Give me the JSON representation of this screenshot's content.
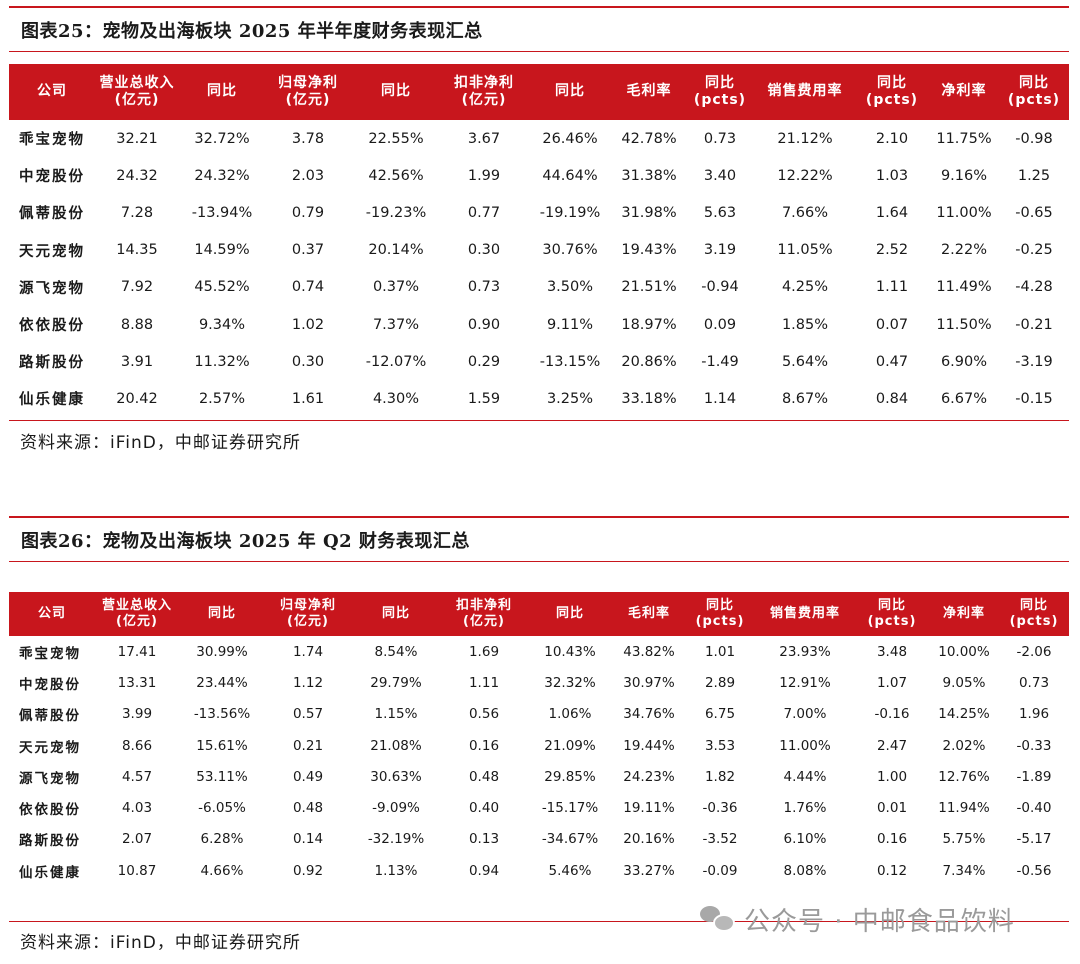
{
  "headers": [
    "公司",
    "营业总收入\n(亿元)",
    "同比",
    "归母净利\n(亿元)",
    "同比",
    "扣非净利\n(亿元)",
    "同比",
    "毛利率",
    "同比\n(pcts)",
    "销售费用率",
    "同比\n(pcts)",
    "净利率",
    "同比\n(pcts)"
  ],
  "table1": {
    "title": "图表25：宠物及出海板块 2025 年半年度财务表现汇总",
    "rows": [
      [
        "乖宝宠物",
        "32.21",
        "32.72%",
        "3.78",
        "22.55%",
        "3.67",
        "26.46%",
        "42.78%",
        "0.73",
        "21.12%",
        "2.10",
        "11.75%",
        "-0.98"
      ],
      [
        "中宠股份",
        "24.32",
        "24.32%",
        "2.03",
        "42.56%",
        "1.99",
        "44.64%",
        "31.38%",
        "3.40",
        "12.22%",
        "1.03",
        "9.16%",
        "1.25"
      ],
      [
        "佩蒂股份",
        "7.28",
        "-13.94%",
        "0.79",
        "-19.23%",
        "0.77",
        "-19.19%",
        "31.98%",
        "5.63",
        "7.66%",
        "1.64",
        "11.00%",
        "-0.65"
      ],
      [
        "天元宠物",
        "14.35",
        "14.59%",
        "0.37",
        "20.14%",
        "0.30",
        "30.76%",
        "19.43%",
        "3.19",
        "11.05%",
        "2.52",
        "2.22%",
        "-0.25"
      ],
      [
        "源飞宠物",
        "7.92",
        "45.52%",
        "0.74",
        "0.37%",
        "0.73",
        "3.50%",
        "21.51%",
        "-0.94",
        "4.25%",
        "1.11",
        "11.49%",
        "-4.28"
      ],
      [
        "依依股份",
        "8.88",
        "9.34%",
        "1.02",
        "7.37%",
        "0.90",
        "9.11%",
        "18.97%",
        "0.09",
        "1.85%",
        "0.07",
        "11.50%",
        "-0.21"
      ],
      [
        "路斯股份",
        "3.91",
        "11.32%",
        "0.30",
        "-12.07%",
        "0.29",
        "-13.15%",
        "20.86%",
        "-1.49",
        "5.64%",
        "0.47",
        "6.90%",
        "-3.19"
      ],
      [
        "仙乐健康",
        "20.42",
        "2.57%",
        "1.61",
        "4.30%",
        "1.59",
        "3.25%",
        "33.18%",
        "1.14",
        "8.67%",
        "0.84",
        "6.67%",
        "-0.15"
      ]
    ],
    "source": "资料来源：iFinD，中邮证券研究所"
  },
  "table2": {
    "title": "图表26：宠物及出海板块 2025 年 Q2 财务表现汇总",
    "rows": [
      [
        "乖宝宠物",
        "17.41",
        "30.99%",
        "1.74",
        "8.54%",
        "1.69",
        "10.43%",
        "43.82%",
        "1.01",
        "23.93%",
        "3.48",
        "10.00%",
        "-2.06"
      ],
      [
        "中宠股份",
        "13.31",
        "23.44%",
        "1.12",
        "29.79%",
        "1.11",
        "32.32%",
        "30.97%",
        "2.89",
        "12.91%",
        "1.07",
        "9.05%",
        "0.73"
      ],
      [
        "佩蒂股份",
        "3.99",
        "-13.56%",
        "0.57",
        "1.15%",
        "0.56",
        "1.06%",
        "34.76%",
        "6.75",
        "7.00%",
        "-0.16",
        "14.25%",
        "1.96"
      ],
      [
        "天元宠物",
        "8.66",
        "15.61%",
        "0.21",
        "21.08%",
        "0.16",
        "21.09%",
        "19.44%",
        "3.53",
        "11.00%",
        "2.47",
        "2.02%",
        "-0.33"
      ],
      [
        "源飞宠物",
        "4.57",
        "53.11%",
        "0.49",
        "30.63%",
        "0.48",
        "29.85%",
        "24.23%",
        "1.82",
        "4.44%",
        "1.00",
        "12.76%",
        "-1.89"
      ],
      [
        "依依股份",
        "4.03",
        "-6.05%",
        "0.48",
        "-9.09%",
        "0.40",
        "-15.17%",
        "19.11%",
        "-0.36",
        "1.76%",
        "0.01",
        "11.94%",
        "-0.40"
      ],
      [
        "路斯股份",
        "2.07",
        "6.28%",
        "0.14",
        "-32.19%",
        "0.13",
        "-34.67%",
        "20.16%",
        "-3.52",
        "6.10%",
        "0.16",
        "5.75%",
        "-5.17"
      ],
      [
        "仙乐健康",
        "10.87",
        "4.66%",
        "0.92",
        "1.13%",
        "0.94",
        "5.46%",
        "33.27%",
        "-0.09",
        "8.08%",
        "0.12",
        "7.34%",
        "-0.56"
      ]
    ],
    "source": "资料来源：iFinD，中邮证券研究所"
  },
  "watermark": {
    "icon": "wechat-icon",
    "text": "公众号 · 中邮食品饮料"
  },
  "colors": {
    "accent": "#c8161d",
    "header_text": "#ffffff"
  }
}
